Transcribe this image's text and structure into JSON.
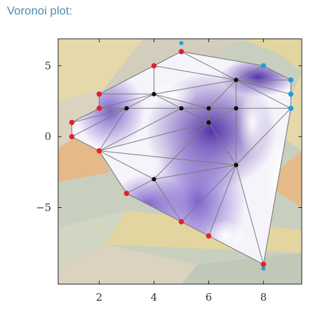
{
  "caption": "Voronoi plot:",
  "chart_data": {
    "type": "scatter",
    "subtype": "voronoi-delaunay",
    "xlim": [
      0.5,
      9.4
    ],
    "ylim": [
      -10.4,
      6.9
    ],
    "xticks": [
      2,
      4,
      6,
      8
    ],
    "yticks": [
      5,
      0,
      -5
    ],
    "xtick_labels": [
      "2",
      "4",
      "6",
      "8"
    ],
    "ytick_labels": [
      "5",
      "0",
      "−5"
    ],
    "background_colors": [
      "#e8d9a8",
      "#d4ccbc",
      "#c9cfbe",
      "#e9b682",
      "#ddd2c0",
      "#e6d59c",
      "#d1d6c2",
      "#bfc8b7"
    ],
    "fill_colors": {
      "hull_light": "#f6f4fb",
      "hull_dark": "#4d2aa6",
      "edge": "#7a7a7a"
    },
    "point_colors": {
      "red": "#e0202a",
      "blue": "#1ca0dc",
      "black": "#111111"
    },
    "points": [
      {
        "x": 5,
        "y": 6,
        "color": "red"
      },
      {
        "x": 4,
        "y": 5,
        "color": "red"
      },
      {
        "x": 2,
        "y": 3,
        "color": "red"
      },
      {
        "x": 2,
        "y": 2,
        "color": "red"
      },
      {
        "x": 1,
        "y": 1,
        "color": "red"
      },
      {
        "x": 1,
        "y": 0,
        "color": "red"
      },
      {
        "x": 2,
        "y": -1,
        "color": "red"
      },
      {
        "x": 3,
        "y": -4,
        "color": "red"
      },
      {
        "x": 5,
        "y": -6,
        "color": "red"
      },
      {
        "x": 6,
        "y": -7,
        "color": "red"
      },
      {
        "x": 8,
        "y": -9,
        "color": "red"
      },
      {
        "x": 8,
        "y": 5,
        "color": "blue"
      },
      {
        "x": 9,
        "y": 4,
        "color": "blue"
      },
      {
        "x": 9,
        "y": 3,
        "color": "blue"
      },
      {
        "x": 9,
        "y": 2,
        "color": "blue"
      },
      {
        "x": 4,
        "y": 3,
        "color": "black"
      },
      {
        "x": 7,
        "y": 4,
        "color": "black"
      },
      {
        "x": 3,
        "y": 2,
        "color": "black"
      },
      {
        "x": 5,
        "y": 2,
        "color": "black"
      },
      {
        "x": 6,
        "y": 2,
        "color": "black"
      },
      {
        "x": 7,
        "y": 2,
        "color": "black"
      },
      {
        "x": 6,
        "y": 1,
        "color": "black"
      },
      {
        "x": 7,
        "y": -2,
        "color": "black"
      },
      {
        "x": 4,
        "y": -3,
        "color": "black"
      }
    ],
    "outer_points": [
      {
        "x": 5,
        "y": 6.6,
        "color": "blue"
      },
      {
        "x": 8,
        "y": -9.3,
        "color": "blue"
      }
    ],
    "hull": [
      [
        5,
        6
      ],
      [
        8,
        5
      ],
      [
        9,
        4
      ],
      [
        9,
        3
      ],
      [
        9,
        2
      ],
      [
        8,
        -9
      ],
      [
        6,
        -7
      ],
      [
        5,
        -6
      ],
      [
        3,
        -4
      ],
      [
        2,
        -1
      ],
      [
        1,
        0
      ],
      [
        1,
        1
      ],
      [
        2,
        2
      ],
      [
        2,
        3
      ],
      [
        4,
        5
      ]
    ],
    "edges": [
      [
        [
          4,
          5
        ],
        [
          4,
          3
        ]
      ],
      [
        [
          4,
          5
        ],
        [
          7,
          4
        ]
      ],
      [
        [
          5,
          6
        ],
        [
          7,
          4
        ]
      ],
      [
        [
          2,
          3
        ],
        [
          4,
          3
        ]
      ],
      [
        [
          2,
          2
        ],
        [
          4,
          3
        ]
      ],
      [
        [
          2,
          2
        ],
        [
          3,
          2
        ]
      ],
      [
        [
          1,
          1
        ],
        [
          3,
          2
        ]
      ],
      [
        [
          1,
          0
        ],
        [
          3,
          2
        ]
      ],
      [
        [
          4,
          3
        ],
        [
          3,
          2
        ]
      ],
      [
        [
          4,
          3
        ],
        [
          5,
          2
        ]
      ],
      [
        [
          4,
          3
        ],
        [
          7,
          4
        ]
      ],
      [
        [
          4,
          3
        ],
        [
          6,
          2
        ]
      ],
      [
        [
          7,
          4
        ],
        [
          6,
          2
        ]
      ],
      [
        [
          7,
          4
        ],
        [
          7,
          2
        ]
      ],
      [
        [
          7,
          4
        ],
        [
          9,
          4
        ]
      ],
      [
        [
          7,
          4
        ],
        [
          9,
          3
        ]
      ],
      [
        [
          7,
          4
        ],
        [
          9,
          2
        ]
      ],
      [
        [
          7,
          4
        ],
        [
          8,
          5
        ]
      ],
      [
        [
          3,
          2
        ],
        [
          9,
          2
        ]
      ],
      [
        [
          3,
          2
        ],
        [
          2,
          -1
        ]
      ],
      [
        [
          5,
          2
        ],
        [
          2,
          -1
        ]
      ],
      [
        [
          6,
          1
        ],
        [
          2,
          -1
        ]
      ],
      [
        [
          6,
          2
        ],
        [
          6,
          1
        ]
      ],
      [
        [
          7,
          2
        ],
        [
          6,
          1
        ]
      ],
      [
        [
          5,
          2
        ],
        [
          6,
          1
        ]
      ],
      [
        [
          6,
          1
        ],
        [
          4,
          -3
        ]
      ],
      [
        [
          6,
          1
        ],
        [
          7,
          -2
        ]
      ],
      [
        [
          7,
          2
        ],
        [
          7,
          -2
        ]
      ],
      [
        [
          9,
          2
        ],
        [
          7,
          -2
        ]
      ],
      [
        [
          2,
          -1
        ],
        [
          4,
          -3
        ]
      ],
      [
        [
          2,
          -1
        ],
        [
          7,
          -2
        ]
      ],
      [
        [
          3,
          -4
        ],
        [
          4,
          -3
        ]
      ],
      [
        [
          4,
          -3
        ],
        [
          5,
          -6
        ]
      ],
      [
        [
          4,
          -3
        ],
        [
          7,
          -2
        ]
      ],
      [
        [
          7,
          -2
        ],
        [
          5,
          -6
        ]
      ],
      [
        [
          7,
          -2
        ],
        [
          6,
          -7
        ]
      ],
      [
        [
          7,
          -2
        ],
        [
          8,
          -9
        ]
      ]
    ]
  }
}
